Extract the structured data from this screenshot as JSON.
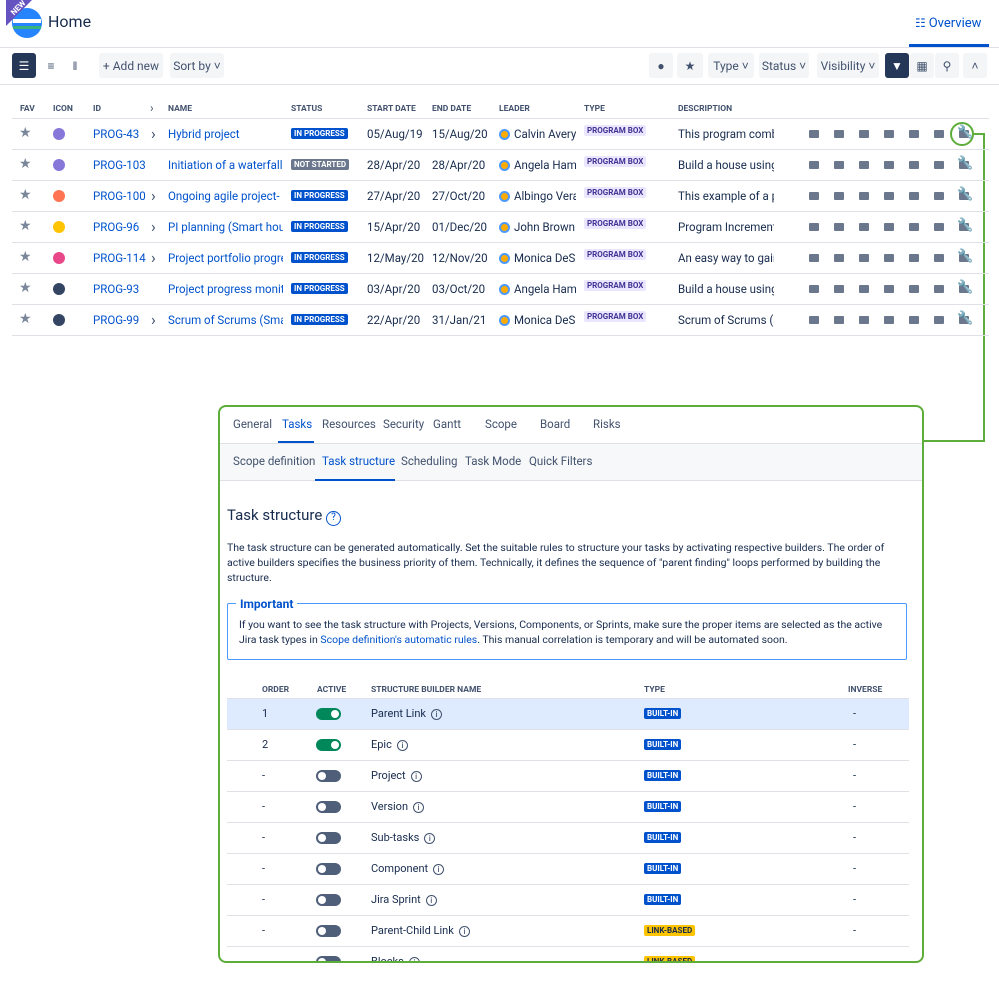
{
  "header": {
    "badge": "NEW",
    "title": "Home",
    "overview": "Overview"
  },
  "toolbar": {
    "add_new": "Add new",
    "sort_by": "Sort by",
    "type": "Type",
    "status": "Status",
    "visibility": "Visibility"
  },
  "table": {
    "columns": [
      "FAV",
      "ICON",
      "ID",
      "NAME",
      "STATUS",
      "START DATE",
      "END DATE",
      "LEADER",
      "TYPE",
      "DESCRIPTION"
    ],
    "rows": [
      {
        "icon_color": "#8777d9",
        "id": "PROG-43",
        "expandable": true,
        "name": "Hybrid project",
        "status": "IN PROGRESS",
        "status_color": "#0052cc",
        "start": "05/Aug/19",
        "end": "15/Aug/20",
        "leader": "Calvin Avery",
        "type": "PROGRAM BOX",
        "description": "This program combi"
      },
      {
        "icon_color": "#8777d9",
        "id": "PROG-103",
        "expandable": false,
        "name": "Initiation of a waterfall p",
        "status": "NOT STARTED",
        "status_color": "#6b778c",
        "start": "28/Apr/20",
        "end": "28/Apr/20",
        "leader": "Angela Hamb",
        "type": "PROGRAM BOX",
        "description": "Build a house using t"
      },
      {
        "icon_color": "#ff7452",
        "id": "PROG-100",
        "expandable": true,
        "name": "Ongoing agile project- pl",
        "status": "IN PROGRESS",
        "status_color": "#0052cc",
        "start": "27/Apr/20",
        "end": "27/Oct/20",
        "leader": "Albingo Verai",
        "type": "PROGRAM BOX",
        "description": "This example of a pr"
      },
      {
        "icon_color": "#ffc400",
        "id": "PROG-96",
        "expandable": true,
        "name": "PI planning (Smart hous",
        "status": "IN PROGRESS",
        "status_color": "#0052cc",
        "start": "15/Apr/20",
        "end": "01/Dec/20",
        "leader": "John Brown",
        "type": "PROGRAM BOX",
        "description": "Program Increment ("
      },
      {
        "icon_color": "#e8488a",
        "id": "PROG-114",
        "expandable": true,
        "name": "Project portfolio progres",
        "status": "IN PROGRESS",
        "status_color": "#0052cc",
        "start": "12/May/20",
        "end": "12/Nov/20",
        "leader": "Monica DeSa",
        "type": "PROGRAM BOX",
        "description": "An easy way to gain"
      },
      {
        "icon_color": "#344563",
        "id": "PROG-93",
        "expandable": false,
        "name": "Project progress monito",
        "status": "IN PROGRESS",
        "status_color": "#0052cc",
        "start": "03/Apr/20",
        "end": "03/Oct/20",
        "leader": "Angela Hamb",
        "type": "PROGRAM BOX",
        "description": "Build a house using t"
      },
      {
        "icon_color": "#344563",
        "id": "PROG-99",
        "expandable": true,
        "name": "Scrum of Scrums (Smar",
        "status": "IN PROGRESS",
        "status_color": "#0052cc",
        "start": "22/Apr/20",
        "end": "31/Jan/21",
        "leader": "Monica DeSa",
        "type": "PROGRAM BOX",
        "description": "Scrum of Scrums (Sc"
      }
    ]
  },
  "panel": {
    "tabs": [
      "General",
      "Tasks",
      "Resources",
      "Security",
      "Gantt",
      "Scope",
      "Board",
      "Risks"
    ],
    "subtabs": [
      "Scope definition",
      "Task structure",
      "Scheduling",
      "Task Mode",
      "Quick Filters"
    ],
    "title": "Task structure",
    "intro": "The task structure can be generated automatically. Set the suitable rules to structure your tasks by activating respective builders. The order of active builders specifies the business priority of them. Technically, it defines the sequence of \"parent finding\" loops performed by building the structure.",
    "important": {
      "title": "Important",
      "before": "If you want to see the task structure with Projects, Versions, Components, or Sprints, make sure the proper items are selected as the active Jira task types in ",
      "link": "Scope definition's automatic rules",
      "after": ". This manual correlation is temporary and will be automated soon."
    },
    "builders": {
      "columns": [
        "ORDER",
        "ACTIVE",
        "STRUCTURE BUILDER NAME",
        "TYPE",
        "INVERSE"
      ],
      "rows": [
        {
          "order": "1",
          "active": true,
          "name": "Parent Link",
          "type": "BUILT-IN",
          "type_color": "#0052cc",
          "inverse": "-"
        },
        {
          "order": "2",
          "active": true,
          "name": "Epic",
          "type": "BUILT-IN",
          "type_color": "#0052cc",
          "inverse": "-"
        },
        {
          "order": "-",
          "active": false,
          "name": "Project",
          "type": "BUILT-IN",
          "type_color": "#0052cc",
          "inverse": "-"
        },
        {
          "order": "-",
          "active": false,
          "name": "Version",
          "type": "BUILT-IN",
          "type_color": "#0052cc",
          "inverse": "-"
        },
        {
          "order": "-",
          "active": false,
          "name": "Sub-tasks",
          "type": "BUILT-IN",
          "type_color": "#0052cc",
          "inverse": "-"
        },
        {
          "order": "-",
          "active": false,
          "name": "Component",
          "type": "BUILT-IN",
          "type_color": "#0052cc",
          "inverse": "-"
        },
        {
          "order": "-",
          "active": false,
          "name": "Jira Sprint",
          "type": "BUILT-IN",
          "type_color": "#0052cc",
          "inverse": "-"
        },
        {
          "order": "-",
          "active": false,
          "name": "Parent-Child Link",
          "type": "LINK-BASED",
          "type_color": "#ffc400",
          "inverse": "-"
        },
        {
          "order": "-",
          "active": false,
          "name": "Blocks",
          "type": "LINK-BASED",
          "type_color": "#ffc400",
          "inverse": "-"
        }
      ]
    }
  }
}
